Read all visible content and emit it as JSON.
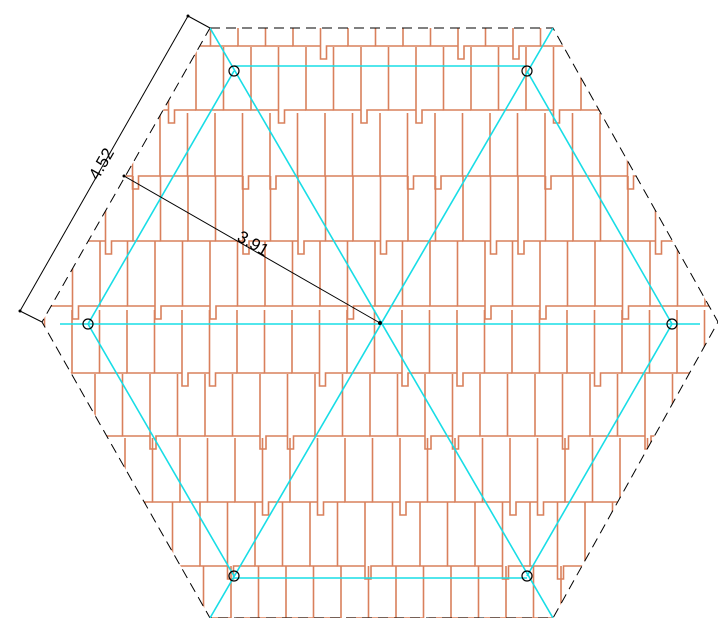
{
  "dimensions": {
    "side_length_label": "4.52",
    "apothem_label": "3.91"
  },
  "colors": {
    "pattern": "#d9805c",
    "grid": "#18dde6",
    "outline": "#000000",
    "dimension": "#000000"
  }
}
